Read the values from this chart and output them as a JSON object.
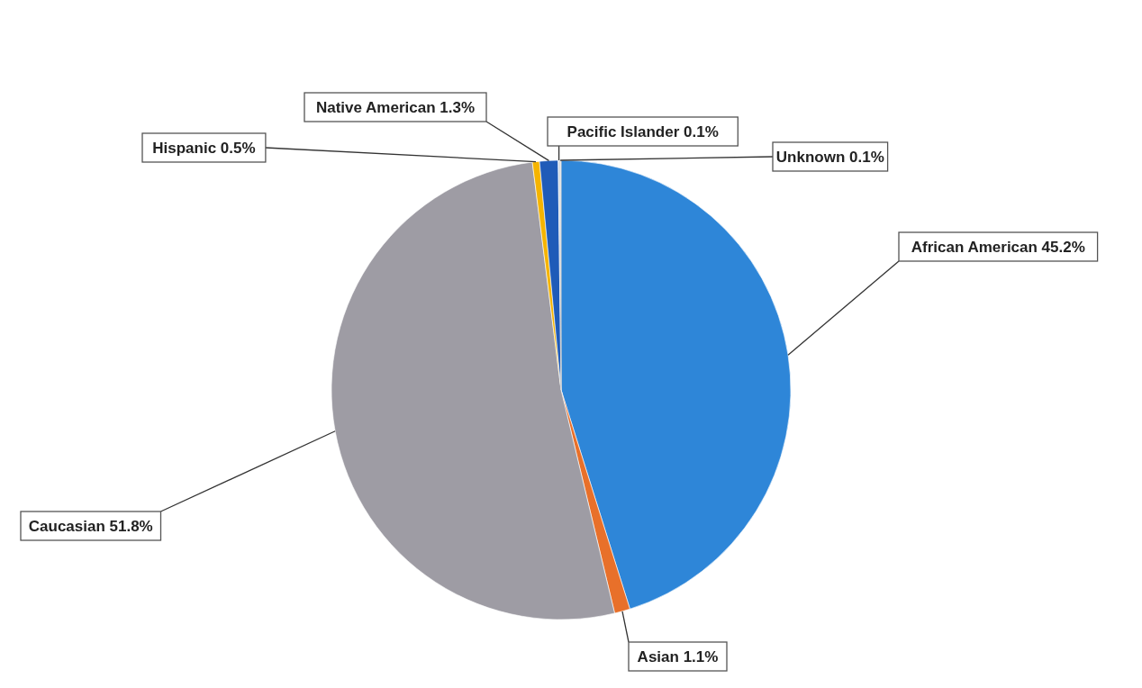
{
  "chart_data": {
    "type": "pie",
    "categories": [
      "African American",
      "Asian",
      "Caucasian",
      "Hispanic",
      "Native American",
      "Pacific Islander",
      "Unknown"
    ],
    "values": [
      45.2,
      1.1,
      51.8,
      0.5,
      1.3,
      0.1,
      0.1
    ],
    "value_labels": [
      "45.2%",
      "1.1%",
      "51.8%",
      "0.5%",
      "1.3%",
      "0.1%",
      "0.1%"
    ],
    "colors": [
      "#2e86d8",
      "#e8702a",
      "#9e9ca4",
      "#f5b400",
      "#1f5bb8",
      "#dbe8f5",
      "#ffffff"
    ],
    "legend": false
  }
}
